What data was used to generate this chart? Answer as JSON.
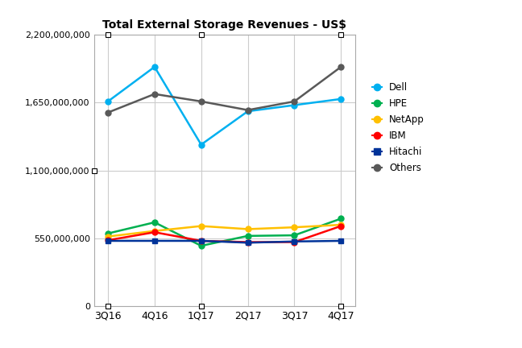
{
  "title": "Total External Storage Revenues - US$",
  "categories": [
    "3Q16",
    "4Q16",
    "1Q17",
    "2Q17",
    "3Q17",
    "4Q17"
  ],
  "series": {
    "Dell": [
      1660000000,
      1940000000,
      1310000000,
      1580000000,
      1630000000,
      1680000000
    ],
    "HPE": [
      590000000,
      680000000,
      490000000,
      570000000,
      575000000,
      710000000
    ],
    "NetApp": [
      565000000,
      610000000,
      650000000,
      625000000,
      640000000,
      660000000
    ],
    "IBM": [
      535000000,
      600000000,
      530000000,
      520000000,
      520000000,
      650000000
    ],
    "Hitachi": [
      530000000,
      530000000,
      530000000,
      515000000,
      525000000,
      530000000
    ],
    "Others": [
      1570000000,
      1720000000,
      1660000000,
      1590000000,
      1660000000,
      1940000000
    ]
  },
  "colors": {
    "Dell": "#00B0F0",
    "HPE": "#00B050",
    "NetApp": "#FFC000",
    "IBM": "#FF0000",
    "Hitachi": "#003399",
    "Others": "#595959"
  },
  "markers": {
    "Dell": "o",
    "HPE": "o",
    "NetApp": "o",
    "IBM": "o",
    "Hitachi": "s",
    "Others": "o"
  },
  "ylim": [
    0,
    2200000000
  ],
  "yticks": [
    0,
    550000000,
    1100000000,
    1650000000,
    2200000000
  ],
  "grid_color": "#CCCCCC",
  "bg_color": "#FFFFFF",
  "linewidth": 1.8,
  "markersize": 5,
  "legend_order": [
    "Dell",
    "HPE",
    "NetApp",
    "IBM",
    "Hitachi",
    "Others"
  ],
  "figsize": [
    6.48,
    4.32
  ],
  "dpi": 100
}
